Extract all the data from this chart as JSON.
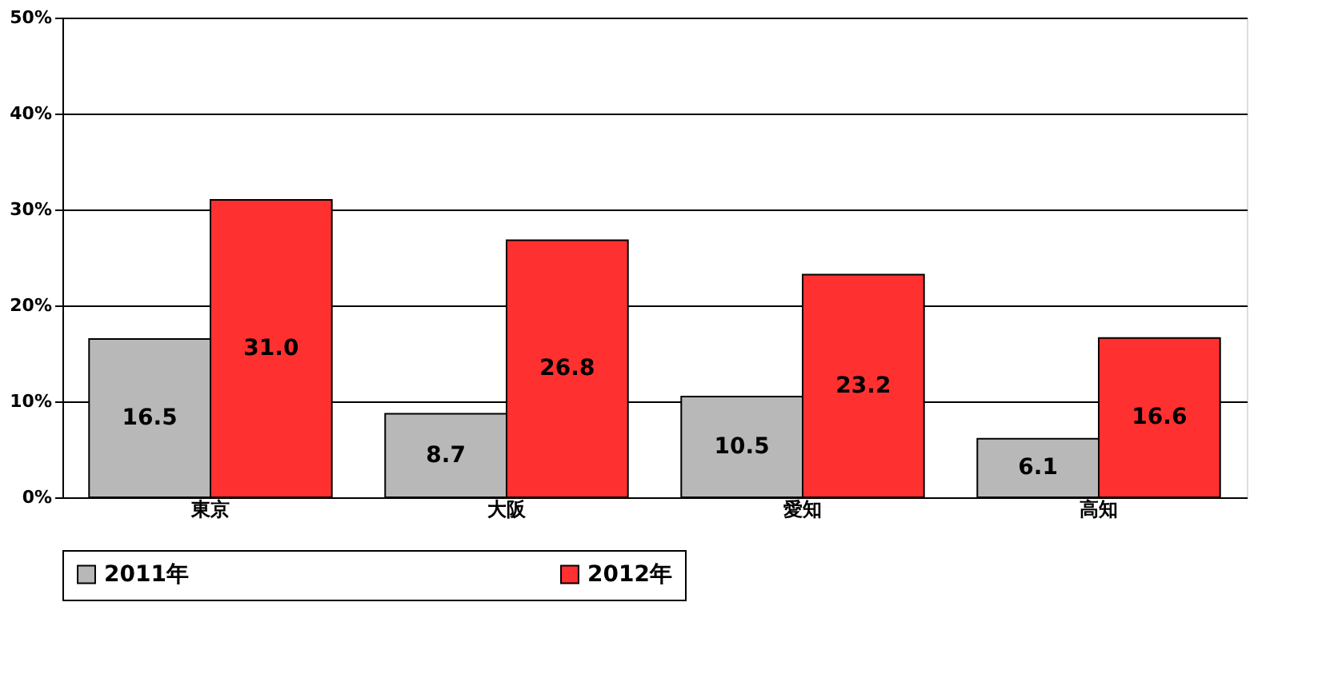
{
  "chart_data": {
    "type": "bar",
    "categories": [
      "東京",
      "大阪",
      "愛知",
      "高知"
    ],
    "series": [
      {
        "name": "2011年",
        "color": "#b8b8b8",
        "values": [
          16.5,
          8.7,
          10.5,
          6.1
        ],
        "value_labels": [
          "16.5",
          "8.7",
          "10.5",
          "6.1"
        ]
      },
      {
        "name": "2012年",
        "color": "#ff3030",
        "values": [
          31.0,
          26.8,
          23.2,
          16.6
        ],
        "value_labels": [
          "31.0",
          "26.8",
          "23.2",
          "16.6"
        ]
      }
    ],
    "ylim": [
      0,
      50
    ],
    "yticks": [
      {
        "value": 0,
        "label": "0%"
      },
      {
        "value": 10,
        "label": "10%"
      },
      {
        "value": 20,
        "label": "20%"
      },
      {
        "value": 30,
        "label": "30%"
      },
      {
        "value": 40,
        "label": "40%"
      },
      {
        "value": 50,
        "label": "50%"
      }
    ],
    "grid": "y",
    "legend": "bottom",
    "data_labels": true
  }
}
